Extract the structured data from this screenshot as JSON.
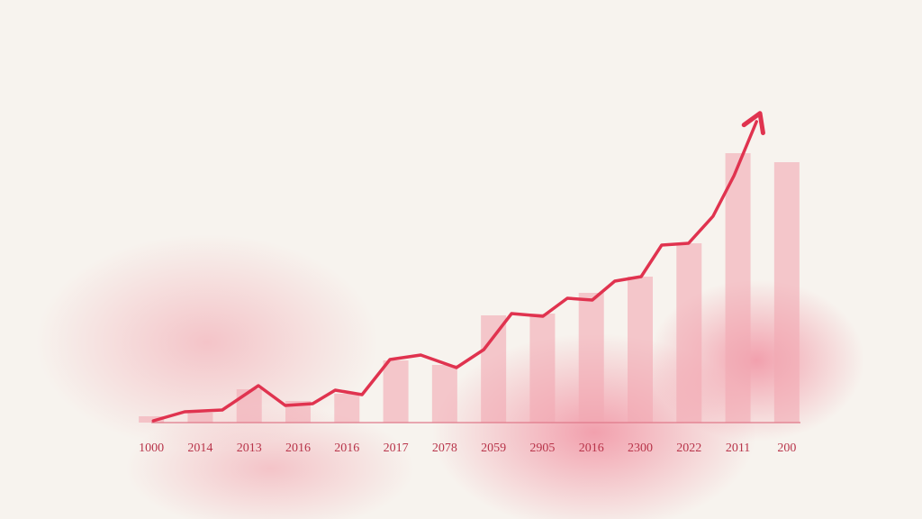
{
  "chart_data": [
    {
      "type": "bar",
      "categories": [
        "1000",
        "2014",
        "2013",
        "2016",
        "2016",
        "2017",
        "2078",
        "2059",
        "2905",
        "2016",
        "2300",
        "2022",
        "2011",
        "200"
      ],
      "values": [
        7,
        11,
        37,
        24,
        32,
        69,
        64,
        119,
        121,
        144,
        162,
        199,
        299,
        289
      ],
      "color": "#f2a9b2",
      "ylim": [
        0,
        350
      ]
    },
    {
      "type": "line",
      "x": [
        0.04,
        0.68,
        1.45,
        2.19,
        2.74,
        3.3,
        3.76,
        4.31,
        4.88,
        5.51,
        6.24,
        6.8,
        7.37,
        8.01,
        8.51,
        9.02,
        9.48,
        10.02,
        10.44,
        10.99,
        11.49,
        11.92,
        12.38
      ],
      "values": [
        2,
        12,
        14,
        41,
        19,
        21,
        36,
        31,
        70,
        75,
        61,
        81,
        121,
        118,
        138,
        136,
        157,
        162,
        197,
        199,
        229,
        274,
        334
      ],
      "color": "#e0334f",
      "xlim": [
        -0.5,
        13.5
      ],
      "ylim": [
        0,
        350
      ]
    }
  ]
}
